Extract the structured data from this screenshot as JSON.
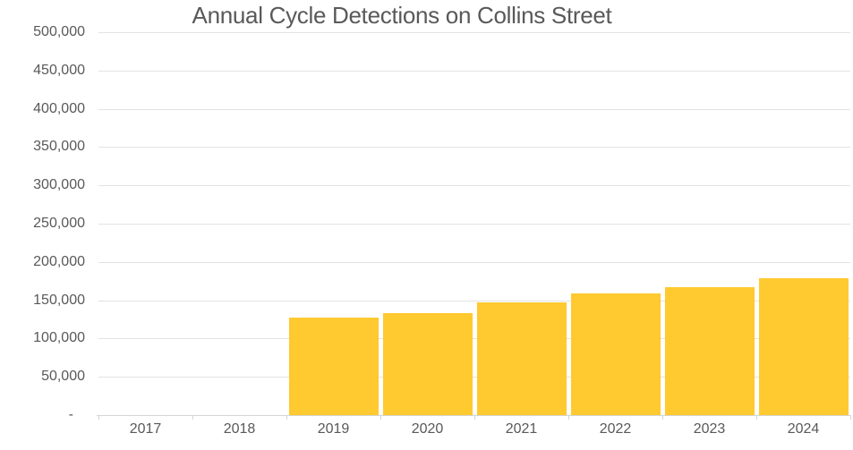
{
  "chart_data": {
    "type": "bar",
    "title": "Annual Cycle Detections on Collins Street",
    "categories": [
      "2017",
      "2018",
      "2019",
      "2020",
      "2021",
      "2022",
      "2023",
      "2024"
    ],
    "values": [
      0,
      0,
      127000,
      133000,
      147000,
      159000,
      167000,
      179000
    ],
    "xlabel": "",
    "ylabel": "",
    "ylim": [
      0,
      500000
    ],
    "ytick_interval": 50000,
    "ytick_labels": [
      "-",
      "50,000",
      "100,000",
      "150,000",
      "200,000",
      "250,000",
      "300,000",
      "350,000",
      "400,000",
      "450,000",
      "500,000"
    ],
    "legend": "none",
    "grid": true,
    "bar_color": "#FFC930",
    "text_color": "#595959",
    "gridline_color": "#E3E3E3",
    "axis_color": "#D4D4D4",
    "background_color": "#FFFFFF"
  }
}
